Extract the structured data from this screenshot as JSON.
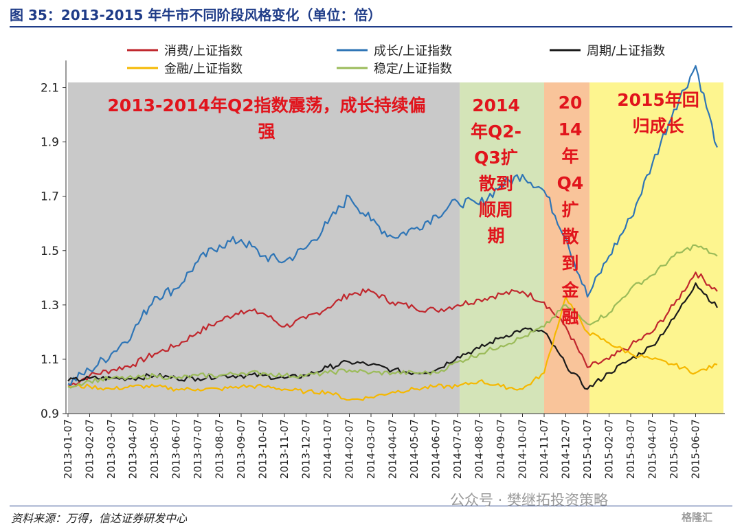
{
  "figure": {
    "title": "图 35：2013-2015 年牛市不同阶段风格变化（单位：倍）",
    "source": "资料来源：万得，信达证券研发中心",
    "watermark": "公众号 · 樊继拓投资策略",
    "watermark_logo": "格隆汇"
  },
  "chart_data": {
    "type": "line",
    "ylim": [
      0.9,
      2.2
    ],
    "yticks": [
      "0.9",
      "1.1",
      "1.3",
      "1.5",
      "1.7",
      "1.9",
      "2.1"
    ],
    "x_tick_labels": [
      "2013-01-07",
      "2013-02-07",
      "2013-03-07",
      "2013-04-07",
      "2013-05-07",
      "2013-06-07",
      "2013-07-07",
      "2013-08-07",
      "2013-09-07",
      "2013-10-07",
      "2013-11-07",
      "2013-12-07",
      "2014-01-07",
      "2014-02-07",
      "2014-03-07",
      "2014-04-07",
      "2014-05-07",
      "2014-06-07",
      "2014-07-07",
      "2014-08-07",
      "2014-09-07",
      "2014-10-07",
      "2014-11-07",
      "2014-12-07",
      "2015-01-07",
      "2015-02-07",
      "2015-03-07",
      "2015-04-07",
      "2015-05-07",
      "2015-06-07"
    ],
    "months": [
      "2013-01",
      "2013-02",
      "2013-03",
      "2013-04",
      "2013-05",
      "2013-06",
      "2013-07",
      "2013-08",
      "2013-09",
      "2013-10",
      "2013-11",
      "2013-12",
      "2014-01",
      "2014-02",
      "2014-03",
      "2014-04",
      "2014-05",
      "2014-06",
      "2014-07",
      "2014-08",
      "2014-09",
      "2014-10",
      "2014-11",
      "2014-12",
      "2015-01",
      "2015-02",
      "2015-03",
      "2015-04",
      "2015-05",
      "2015-06",
      "2015-07"
    ],
    "legend": {
      "position": "top",
      "items": [
        "消费/上证指数",
        "成长/上证指数",
        "周期/上证指数",
        "金融/上证指数",
        "稳定/上证指数"
      ]
    },
    "series": [
      {
        "name": "消费/上证指数",
        "color": "#c0272d",
        "values": [
          1.0,
          1.04,
          1.06,
          1.08,
          1.12,
          1.15,
          1.2,
          1.24,
          1.28,
          1.27,
          1.22,
          1.25,
          1.29,
          1.34,
          1.35,
          1.31,
          1.29,
          1.28,
          1.3,
          1.32,
          1.34,
          1.35,
          1.31,
          1.22,
          1.07,
          1.1,
          1.15,
          1.2,
          1.3,
          1.42,
          1.35
        ]
      },
      {
        "name": "成长/上证指数",
        "color": "#2e75b6",
        "values": [
          1.01,
          1.06,
          1.12,
          1.2,
          1.33,
          1.36,
          1.46,
          1.52,
          1.54,
          1.48,
          1.46,
          1.51,
          1.6,
          1.7,
          1.61,
          1.55,
          1.58,
          1.63,
          1.68,
          1.67,
          1.74,
          1.78,
          1.72,
          1.55,
          1.33,
          1.48,
          1.62,
          1.82,
          2.02,
          2.18,
          1.88
        ]
      },
      {
        "name": "周期/上证指数",
        "color": "#1a1a1a",
        "values": [
          1.02,
          1.03,
          1.03,
          1.03,
          1.04,
          1.03,
          1.03,
          1.04,
          1.04,
          1.04,
          1.03,
          1.04,
          1.07,
          1.09,
          1.08,
          1.06,
          1.05,
          1.06,
          1.11,
          1.14,
          1.18,
          1.21,
          1.2,
          1.08,
          0.99,
          1.05,
          1.1,
          1.15,
          1.25,
          1.38,
          1.29
        ]
      },
      {
        "name": "金融/上证指数",
        "color": "#f5b800",
        "values": [
          1.0,
          1.0,
          0.99,
          1.0,
          1.0,
          0.99,
          0.99,
          0.99,
          1.0,
          1.0,
          0.99,
          0.98,
          0.98,
          0.95,
          0.96,
          0.98,
          0.99,
          1.0,
          1.0,
          1.02,
          1.0,
          0.99,
          1.05,
          1.33,
          1.2,
          1.16,
          1.12,
          1.1,
          1.08,
          1.05,
          1.08
        ]
      },
      {
        "name": "稳定/上证指数",
        "color": "#9bbb59",
        "values": [
          1.0,
          1.02,
          1.03,
          1.03,
          1.04,
          1.03,
          1.04,
          1.04,
          1.05,
          1.05,
          1.04,
          1.04,
          1.05,
          1.06,
          1.05,
          1.05,
          1.05,
          1.05,
          1.09,
          1.12,
          1.15,
          1.18,
          1.22,
          1.3,
          1.23,
          1.27,
          1.36,
          1.41,
          1.48,
          1.52,
          1.48
        ]
      }
    ],
    "regions": [
      {
        "label": "2013-2014年Q2指数震荡，成长持续偏\n强",
        "color": "#c9c9c9",
        "start": 0,
        "end": 18.1
      },
      {
        "label": "2014\n年Q2-\nQ3扩\n散到\n顺周\n期",
        "color": "#d4e4b8",
        "start": 18.1,
        "end": 22.0
      },
      {
        "label": "20\n14\n年\nQ4\n扩\n散\n到\n金\n融",
        "color": "#f9c49a",
        "start": 22.0,
        "end": 24.1
      },
      {
        "label": "2015年回\n归成长",
        "color": "#fdf58f",
        "start": 24.1,
        "end": 30.5
      }
    ],
    "region_label_color": "#e1141c",
    "grid": false
  }
}
